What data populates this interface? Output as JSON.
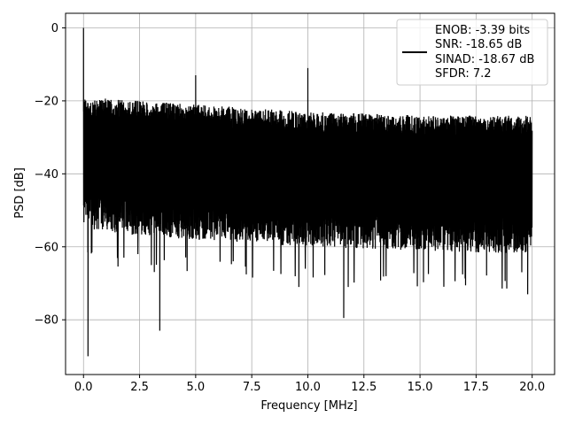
{
  "chart_data": {
    "type": "line",
    "xlabel": "Frequency [MHz]",
    "ylabel": "PSD [dB]",
    "xlim": [
      -0.8,
      21.0
    ],
    "ylim": [
      -95,
      4
    ],
    "x_ticks": [
      0.0,
      2.5,
      5.0,
      7.5,
      10.0,
      12.5,
      15.0,
      17.5,
      20.0
    ],
    "x_tick_labels": [
      "0.0",
      "2.5",
      "5.0",
      "7.5",
      "10.0",
      "12.5",
      "15.0",
      "17.5",
      "20.0"
    ],
    "y_ticks": [
      0,
      -20,
      -40,
      -60,
      -80
    ],
    "y_tick_labels": [
      "0",
      "−20",
      "−40",
      "−60",
      "−80"
    ],
    "grid": true,
    "legend_position": "top-right",
    "series": [
      {
        "color": "#000000",
        "x_range": [
          0.0,
          20.0
        ],
        "noise_upper_envelope": {
          "x": [
            0.1,
            2.5,
            5.0,
            10.0,
            15.0,
            20.0
          ],
          "y": [
            -19,
            -20,
            -21,
            -23,
            -24,
            -24
          ]
        },
        "noise_lower_envelope": {
          "x": [
            0.1,
            2.5,
            5.0,
            10.0,
            15.0,
            20.0
          ],
          "y": [
            -55,
            -57,
            -58,
            -60,
            -61,
            -62
          ]
        },
        "peaks": [
          {
            "x": 0.0,
            "y": 0.0
          },
          {
            "x": 5.0,
            "y": -13.0
          },
          {
            "x": 10.0,
            "y": -11.0
          }
        ],
        "dips": [
          {
            "x": 0.2,
            "y": -90.0
          },
          {
            "x": 3.4,
            "y": -83.0
          },
          {
            "x": 11.6,
            "y": -79.5
          },
          {
            "x": 9.6,
            "y": -71.0
          },
          {
            "x": 11.8,
            "y": -71.0
          },
          {
            "x": 19.8,
            "y": -73.0
          }
        ]
      }
    ],
    "legend": {
      "lines": [
        "ENOB: -3.39 bits",
        "SNR: -18.65 dB",
        "SINAD: -18.67 dB",
        "SFDR: 7.2"
      ]
    }
  }
}
